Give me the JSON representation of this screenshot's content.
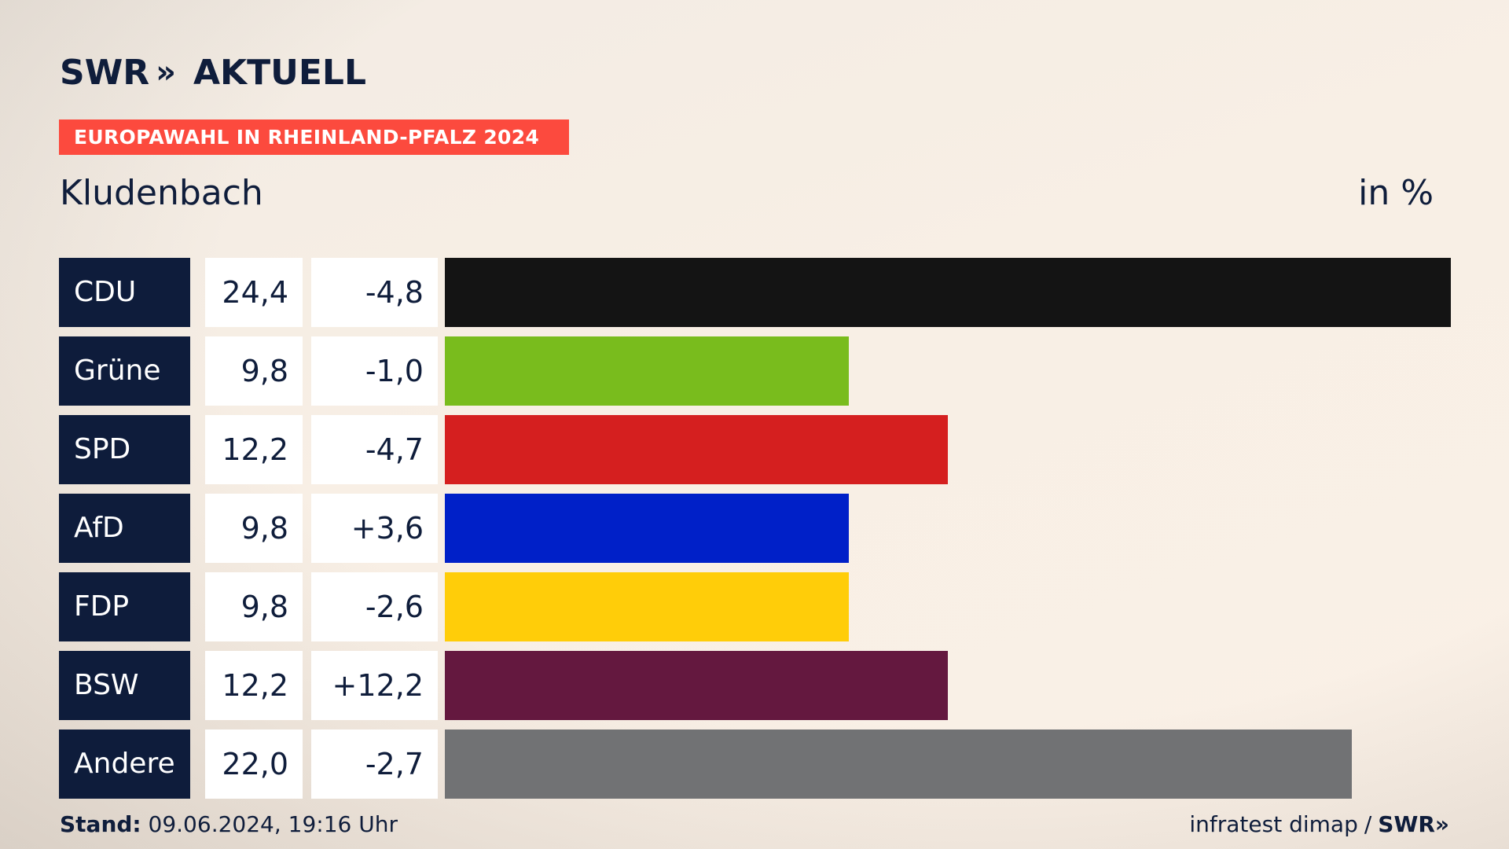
{
  "brand": {
    "logo_left": "SWR",
    "logo_chev": "»",
    "logo_right": "AKTUELL"
  },
  "tag": "EUROPAWAHL IN RHEINLAND-PFALZ 2024",
  "place": "Kludenbach",
  "unit": "in %",
  "chart_data": {
    "type": "bar",
    "orientation": "horizontal",
    "categories": [
      "CDU",
      "Grüne",
      "SPD",
      "AfD",
      "FDP",
      "BSW",
      "Andere"
    ],
    "values": [
      24.4,
      9.8,
      12.2,
      9.8,
      9.8,
      12.2,
      22.0
    ],
    "value_labels": [
      "24,4",
      "9,8",
      "12,2",
      "9,8",
      "9,8",
      "12,2",
      "22,0"
    ],
    "diff_labels": [
      "-4,8",
      "-1,0",
      "-4,7",
      "+3,6",
      "-2,6",
      "+12,2",
      "-2,7"
    ],
    "colors": [
      "#141414",
      "#79bc1d",
      "#d51f1f",
      "#0020c8",
      "#ffcd09",
      "#64183f",
      "#717274"
    ],
    "xlim": [
      0,
      24.4
    ]
  },
  "footer": {
    "stand_label": "Stand:",
    "stand_value": "09.06.2024, 19:16 Uhr",
    "source": "infratest dimap",
    "separator": "/",
    "source_brand": "SWR»"
  }
}
